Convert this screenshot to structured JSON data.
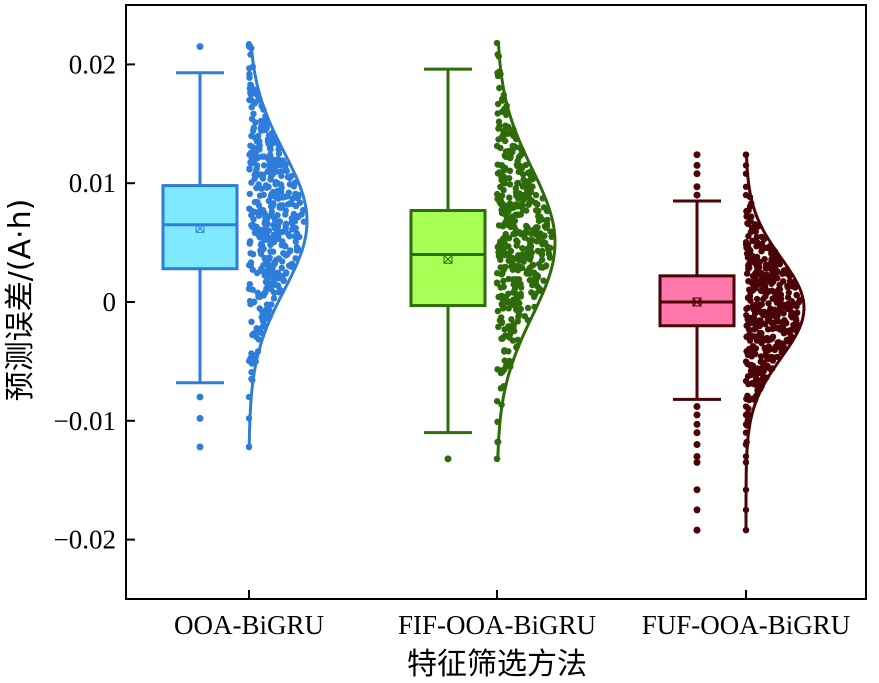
{
  "chart_data": {
    "type": "box",
    "title": "",
    "xlabel": "特征筛选方法",
    "ylabel": "预测误差/(A·h)",
    "ylim": [
      -0.025,
      0.025
    ],
    "yticks": [
      -0.02,
      -0.01,
      0,
      0.01,
      0.02
    ],
    "ytick_labels": [
      "−0.02",
      "−0.01",
      "0",
      "0.01",
      "0.02"
    ],
    "grid": false,
    "categories": [
      "OOA-BiGRU",
      "FIF-OOA-BiGRU",
      "FUF-OOA-BiGRU"
    ],
    "series": [
      {
        "category": "OOA-BiGRU",
        "box_color": "#7FEAFF",
        "line_color": "#2E7DDB",
        "whisker_low": -0.0068,
        "q1": 0.0028,
        "median": 0.0065,
        "q3": 0.0098,
        "whisker_high": 0.0193,
        "mean": 0.0062,
        "outliers": [
          0.0215,
          -0.008,
          -0.0098,
          -0.0122
        ],
        "distribution": {
          "min": -0.0122,
          "max": 0.0217,
          "peak": 0.0068,
          "spread": 0.0058
        }
      },
      {
        "category": "FIF-OOA-BiGRU",
        "box_color": "#A8FF55",
        "line_color": "#2E6B0A",
        "whisker_low": -0.011,
        "q1": -0.0003,
        "median": 0.004,
        "q3": 0.0077,
        "whisker_high": 0.0196,
        "mean": 0.0036,
        "outliers": [
          -0.0132
        ],
        "distribution": {
          "min": -0.0132,
          "max": 0.0218,
          "peak": 0.005,
          "spread": 0.0062
        }
      },
      {
        "category": "FUF-OOA-BiGRU",
        "box_color": "#FF77AA",
        "line_color": "#4A0306",
        "whisker_low": -0.0082,
        "q1": -0.002,
        "median": 0.0,
        "q3": 0.0022,
        "whisker_high": 0.0085,
        "mean": 0.0,
        "outliers": [
          0.0124,
          0.0115,
          0.0108,
          0.0097,
          0.009,
          -0.0088,
          -0.0095,
          -0.0103,
          -0.011,
          -0.012,
          -0.013,
          -0.0135,
          -0.0158,
          -0.0175,
          -0.0192
        ],
        "distribution": {
          "min": -0.0192,
          "max": 0.0124,
          "peak": -0.0005,
          "spread": 0.0042
        }
      }
    ]
  }
}
